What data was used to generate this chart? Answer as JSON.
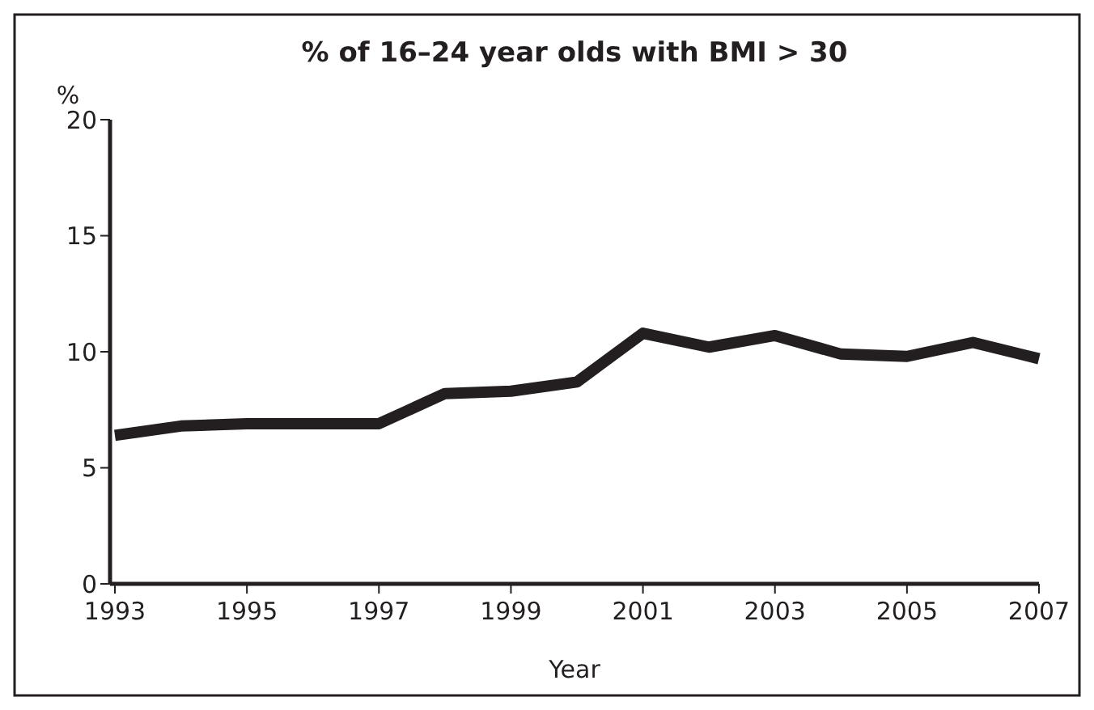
{
  "chart_data": {
    "type": "line",
    "title": "% of 16–24 year olds with BMI > 30",
    "xlabel": "Year",
    "ylabel": "%",
    "x": [
      1993,
      1994,
      1995,
      1996,
      1997,
      1998,
      1999,
      2000,
      2001,
      2002,
      2003,
      2004,
      2005,
      2006,
      2007
    ],
    "series": [
      {
        "color": "#231f20",
        "values": [
          6.4,
          6.8,
          6.9,
          6.9,
          6.9,
          8.2,
          8.3,
          8.7,
          10.8,
          10.2,
          10.7,
          9.9,
          9.8,
          10.4,
          9.7
        ]
      }
    ],
    "xlim": [
      1993,
      2007
    ],
    "xticks": [
      1993,
      1995,
      1997,
      1999,
      2001,
      2003,
      2005,
      2007
    ],
    "ylim": [
      0,
      20
    ],
    "yticks": [
      0,
      5,
      10,
      15,
      20
    ],
    "marker": "none",
    "line_style": "solid"
  }
}
